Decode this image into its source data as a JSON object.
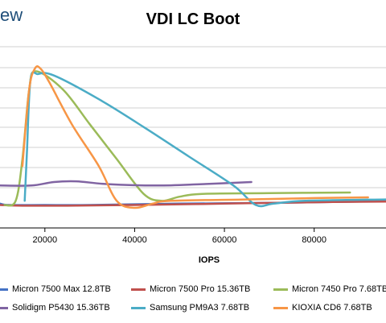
{
  "logo": {
    "text": "ew"
  },
  "chart_data": {
    "type": "line",
    "title": "VDI LC Boot",
    "xlabel": "IOPS",
    "ylabel": "",
    "xlim": [
      10000,
      96000
    ],
    "ylim": [
      0,
      1
    ],
    "x_ticks": [
      20000,
      40000,
      60000,
      80000
    ],
    "x_tick_labels": [
      "20000",
      "40000",
      "60000",
      "80000"
    ],
    "grid": "horizontal",
    "legend_position": "bottom",
    "series": [
      {
        "name": "Micron 7500 Max 12.8TB",
        "color": "#4472c4",
        "points": [
          [
            10000,
            0.03
          ],
          [
            12000,
            0.02
          ],
          [
            20000,
            0.02
          ],
          [
            30000,
            0.02
          ],
          [
            50000,
            0.03
          ],
          [
            70000,
            0.035
          ],
          [
            90000,
            0.045
          ],
          [
            96000,
            0.05
          ]
        ]
      },
      {
        "name": "Micron 7500 Pro 15.36TB",
        "color": "#c0504d",
        "points": [
          [
            10000,
            0.02
          ],
          [
            15000,
            0.015
          ],
          [
            25000,
            0.015
          ],
          [
            40000,
            0.02
          ],
          [
            60000,
            0.03
          ],
          [
            80000,
            0.04
          ],
          [
            96000,
            0.045
          ]
        ]
      },
      {
        "name": "Micron 7450 Pro 7.68TB",
        "color": "#9bbb59",
        "points": [
          [
            11000,
            0.02
          ],
          [
            13500,
            0.05
          ],
          [
            15000,
            0.35
          ],
          [
            16500,
            0.85
          ],
          [
            18000,
            0.98
          ],
          [
            24000,
            0.85
          ],
          [
            30000,
            0.6
          ],
          [
            36000,
            0.35
          ],
          [
            42000,
            0.1
          ],
          [
            46000,
            0.05
          ],
          [
            50000,
            0.08
          ],
          [
            55000,
            0.1
          ],
          [
            70000,
            0.105
          ],
          [
            88000,
            0.11
          ]
        ]
      },
      {
        "name": "Solidigm P5430 15.36TB",
        "color": "#8064a2",
        "points": [
          [
            10000,
            0.16
          ],
          [
            17000,
            0.16
          ],
          [
            22000,
            0.185
          ],
          [
            27000,
            0.19
          ],
          [
            34000,
            0.17
          ],
          [
            45000,
            0.16
          ],
          [
            55000,
            0.17
          ],
          [
            66000,
            0.185
          ]
        ]
      },
      {
        "name": "Samsung PM9A3 7.68TB",
        "color": "#4bacc6",
        "points": [
          [
            15500,
            0.05
          ],
          [
            16000,
            0.4
          ],
          [
            16800,
            0.92
          ],
          [
            18500,
            0.96
          ],
          [
            22000,
            0.95
          ],
          [
            32000,
            0.78
          ],
          [
            42000,
            0.58
          ],
          [
            52000,
            0.37
          ],
          [
            62000,
            0.16
          ],
          [
            67000,
            0.02
          ],
          [
            71000,
            0.03
          ],
          [
            78000,
            0.05
          ],
          [
            96000,
            0.06
          ]
        ]
      },
      {
        "name": "KIOXIA CD6 7.68TB",
        "color": "#f79646",
        "points": [
          [
            15000,
            0.3
          ],
          [
            16500,
            0.85
          ],
          [
            17800,
            1.0
          ],
          [
            19000,
            1.0
          ],
          [
            21000,
            0.9
          ],
          [
            26000,
            0.6
          ],
          [
            32000,
            0.3
          ],
          [
            36000,
            0.05
          ],
          [
            40000,
            0.0
          ],
          [
            44000,
            0.03
          ],
          [
            48000,
            0.05
          ],
          [
            65000,
            0.06
          ],
          [
            80000,
            0.07
          ],
          [
            92000,
            0.075
          ]
        ]
      }
    ]
  }
}
